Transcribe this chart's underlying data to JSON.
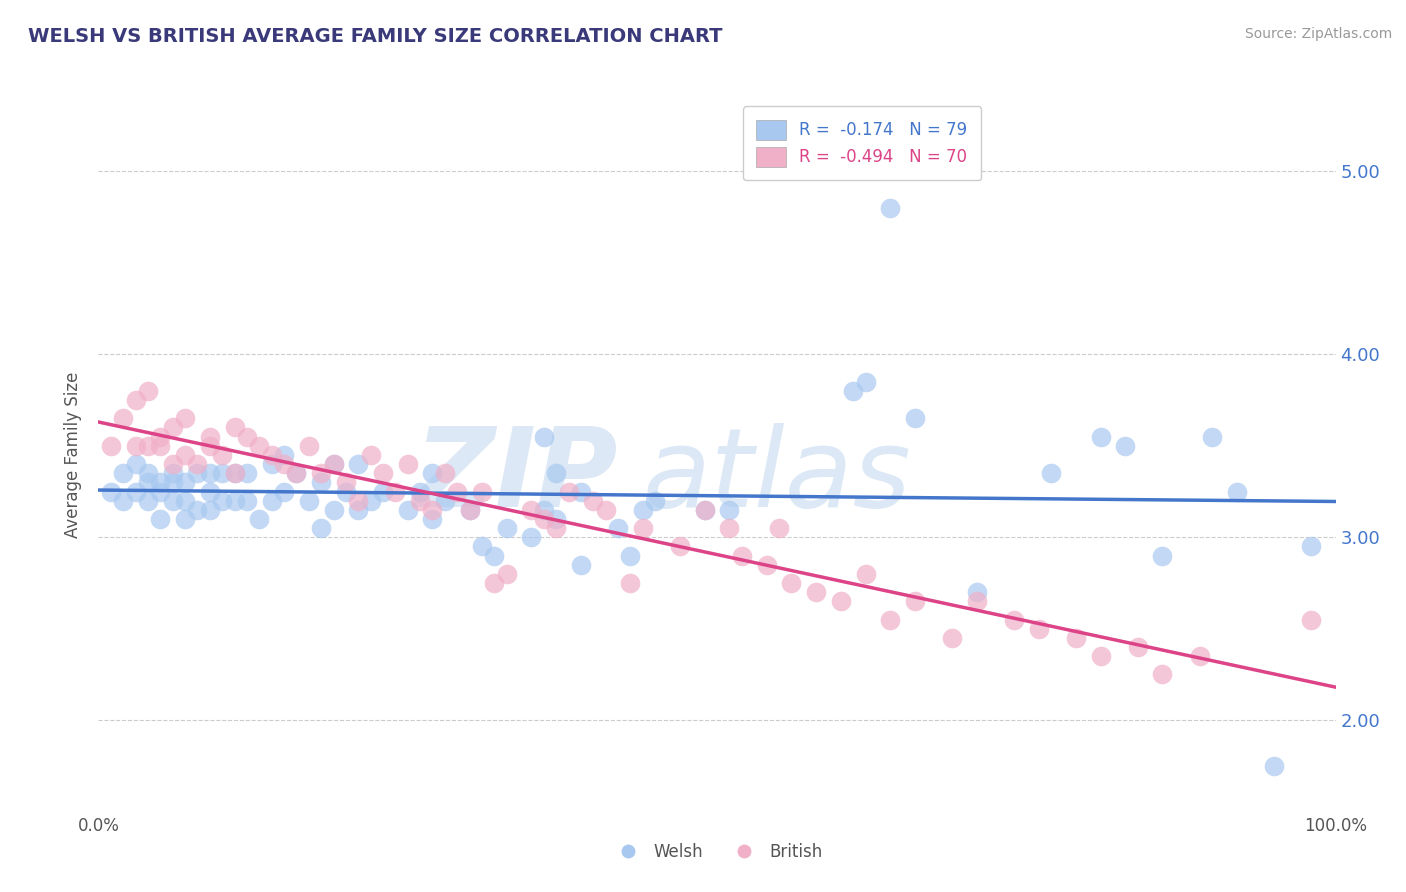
{
  "title": "WELSH VS BRITISH AVERAGE FAMILY SIZE CORRELATION CHART",
  "source": "Source: ZipAtlas.com",
  "ylabel": "Average Family Size",
  "xlim": [
    0.0,
    1.0
  ],
  "ylim": [
    1.5,
    5.4
  ],
  "yticks": [
    2.0,
    3.0,
    4.0,
    5.0
  ],
  "xtick_labels": [
    "0.0%",
    "100.0%"
  ],
  "welsh_R": "-0.174",
  "welsh_N": "79",
  "british_R": "-0.494",
  "british_N": "70",
  "welsh_color": "#a8c8f0",
  "british_color": "#f0b0c8",
  "welsh_line_color": "#4477cc",
  "british_line_color": "#dd4488",
  "background_color": "#ffffff",
  "title_color": "#3a3a7a",
  "watermark_color": "#dce8f5",
  "welsh_x": [
    0.01,
    0.02,
    0.02,
    0.03,
    0.03,
    0.04,
    0.04,
    0.04,
    0.05,
    0.05,
    0.05,
    0.06,
    0.06,
    0.06,
    0.07,
    0.07,
    0.07,
    0.08,
    0.08,
    0.09,
    0.09,
    0.09,
    0.1,
    0.1,
    0.11,
    0.11,
    0.12,
    0.12,
    0.13,
    0.14,
    0.14,
    0.15,
    0.15,
    0.16,
    0.17,
    0.18,
    0.18,
    0.19,
    0.19,
    0.2,
    0.21,
    0.21,
    0.22,
    0.23,
    0.25,
    0.26,
    0.27,
    0.27,
    0.28,
    0.3,
    0.31,
    0.32,
    0.33,
    0.35,
    0.36,
    0.37,
    0.39,
    0.39,
    0.42,
    0.43,
    0.44,
    0.45,
    0.49,
    0.51,
    0.36,
    0.37,
    0.61,
    0.62,
    0.64,
    0.66,
    0.71,
    0.77,
    0.81,
    0.83,
    0.86,
    0.9,
    0.92,
    0.95,
    0.98
  ],
  "welsh_y": [
    3.25,
    3.2,
    3.35,
    3.25,
    3.4,
    3.3,
    3.2,
    3.35,
    3.25,
    3.3,
    3.1,
    3.35,
    3.2,
    3.3,
    3.2,
    3.3,
    3.1,
    3.35,
    3.15,
    3.35,
    3.15,
    3.25,
    3.35,
    3.2,
    3.35,
    3.2,
    3.35,
    3.2,
    3.1,
    3.4,
    3.2,
    3.45,
    3.25,
    3.35,
    3.2,
    3.3,
    3.05,
    3.4,
    3.15,
    3.25,
    3.15,
    3.4,
    3.2,
    3.25,
    3.15,
    3.25,
    3.35,
    3.1,
    3.2,
    3.15,
    2.95,
    2.9,
    3.05,
    3.0,
    3.15,
    3.1,
    3.25,
    2.85,
    3.05,
    2.9,
    3.15,
    3.2,
    3.15,
    3.15,
    3.55,
    3.35,
    3.8,
    3.85,
    4.8,
    3.65,
    2.7,
    3.35,
    3.55,
    3.5,
    2.9,
    3.55,
    3.25,
    1.75,
    2.95
  ],
  "british_x": [
    0.01,
    0.02,
    0.03,
    0.03,
    0.04,
    0.04,
    0.05,
    0.05,
    0.06,
    0.06,
    0.07,
    0.07,
    0.08,
    0.09,
    0.09,
    0.1,
    0.11,
    0.11,
    0.12,
    0.13,
    0.14,
    0.15,
    0.16,
    0.17,
    0.18,
    0.19,
    0.2,
    0.21,
    0.22,
    0.23,
    0.24,
    0.25,
    0.26,
    0.27,
    0.28,
    0.29,
    0.3,
    0.31,
    0.32,
    0.33,
    0.35,
    0.36,
    0.37,
    0.38,
    0.4,
    0.41,
    0.43,
    0.44,
    0.47,
    0.49,
    0.51,
    0.52,
    0.54,
    0.55,
    0.56,
    0.58,
    0.6,
    0.62,
    0.64,
    0.66,
    0.69,
    0.71,
    0.74,
    0.76,
    0.79,
    0.81,
    0.84,
    0.86,
    0.89,
    0.98
  ],
  "british_y": [
    3.5,
    3.65,
    3.5,
    3.75,
    3.5,
    3.8,
    3.55,
    3.5,
    3.4,
    3.6,
    3.45,
    3.65,
    3.4,
    3.5,
    3.55,
    3.45,
    3.6,
    3.35,
    3.55,
    3.5,
    3.45,
    3.4,
    3.35,
    3.5,
    3.35,
    3.4,
    3.3,
    3.2,
    3.45,
    3.35,
    3.25,
    3.4,
    3.2,
    3.15,
    3.35,
    3.25,
    3.15,
    3.25,
    2.75,
    2.8,
    3.15,
    3.1,
    3.05,
    3.25,
    3.2,
    3.15,
    2.75,
    3.05,
    2.95,
    3.15,
    3.05,
    2.9,
    2.85,
    3.05,
    2.75,
    2.7,
    2.65,
    2.8,
    2.55,
    2.65,
    2.45,
    2.65,
    2.55,
    2.5,
    2.45,
    2.35,
    2.4,
    2.25,
    2.35,
    2.55
  ]
}
